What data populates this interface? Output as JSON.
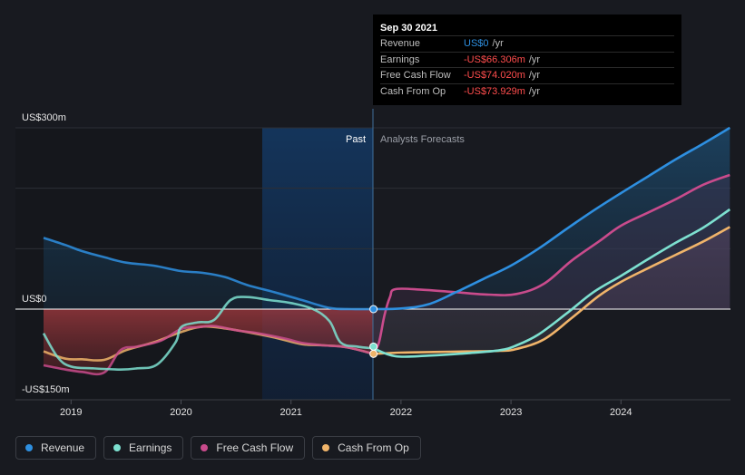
{
  "chart_data": {
    "type": "area",
    "currency_unit": "US$m",
    "y_tick_labels": [
      "US$300m",
      "US$0",
      "-US$150m"
    ],
    "x_tick_labels": [
      "2019",
      "2020",
      "2021",
      "2022",
      "2023",
      "2024"
    ],
    "ylim": [
      -150,
      300
    ],
    "xlim": [
      2018.75,
      2024.99
    ],
    "past_label": "Past",
    "forecast_label": "Analysts Forecasts",
    "highlight_x": 2021.75,
    "grid": true,
    "series": [
      {
        "name": "Revenue",
        "color": "#2e8fe0",
        "points": [
          [
            2018.75,
            118
          ],
          [
            2018.95,
            106
          ],
          [
            2019.1,
            96
          ],
          [
            2019.3,
            86
          ],
          [
            2019.5,
            77
          ],
          [
            2019.75,
            72
          ],
          [
            2020.0,
            63
          ],
          [
            2020.2,
            60
          ],
          [
            2020.4,
            53
          ],
          [
            2020.6,
            40
          ],
          [
            2020.85,
            28
          ],
          [
            2021.1,
            15
          ],
          [
            2021.35,
            2
          ],
          [
            2021.55,
            0
          ],
          [
            2021.75,
            0
          ],
          [
            2022.0,
            1
          ],
          [
            2022.25,
            8
          ],
          [
            2022.5,
            28
          ],
          [
            2022.75,
            50
          ],
          [
            2023.0,
            72
          ],
          [
            2023.25,
            100
          ],
          [
            2023.5,
            132
          ],
          [
            2023.75,
            163
          ],
          [
            2024.0,
            192
          ],
          [
            2024.25,
            220
          ],
          [
            2024.5,
            248
          ],
          [
            2024.75,
            274
          ],
          [
            2024.99,
            300
          ]
        ]
      },
      {
        "name": "Earnings",
        "color": "#7de0d0",
        "points": [
          [
            2018.75,
            -40
          ],
          [
            2018.88,
            -80
          ],
          [
            2019.0,
            -95
          ],
          [
            2019.2,
            -98
          ],
          [
            2019.45,
            -100
          ],
          [
            2019.6,
            -98
          ],
          [
            2019.78,
            -92
          ],
          [
            2019.95,
            -55
          ],
          [
            2020.0,
            -30
          ],
          [
            2020.15,
            -22
          ],
          [
            2020.3,
            -18
          ],
          [
            2020.45,
            15
          ],
          [
            2020.6,
            20
          ],
          [
            2020.8,
            15
          ],
          [
            2021.0,
            10
          ],
          [
            2021.2,
            0
          ],
          [
            2021.35,
            -20
          ],
          [
            2021.45,
            -55
          ],
          [
            2021.6,
            -62
          ],
          [
            2021.75,
            -65
          ],
          [
            2021.95,
            -78
          ],
          [
            2022.25,
            -77
          ],
          [
            2022.6,
            -73
          ],
          [
            2022.9,
            -68
          ],
          [
            2023.05,
            -60
          ],
          [
            2023.25,
            -42
          ],
          [
            2023.5,
            -8
          ],
          [
            2023.75,
            28
          ],
          [
            2024.0,
            55
          ],
          [
            2024.25,
            83
          ],
          [
            2024.5,
            110
          ],
          [
            2024.75,
            135
          ],
          [
            2024.99,
            165
          ]
        ]
      },
      {
        "name": "Free Cash Flow",
        "color": "#c94b8c",
        "points": [
          [
            2018.75,
            -93
          ],
          [
            2018.95,
            -100
          ],
          [
            2019.1,
            -104
          ],
          [
            2019.3,
            -105
          ],
          [
            2019.45,
            -68
          ],
          [
            2019.6,
            -62
          ],
          [
            2019.82,
            -52
          ],
          [
            2020.0,
            -33
          ],
          [
            2020.15,
            -30
          ],
          [
            2020.3,
            -28
          ],
          [
            2020.5,
            -35
          ],
          [
            2020.7,
            -40
          ],
          [
            2020.95,
            -49
          ],
          [
            2021.1,
            -56
          ],
          [
            2021.3,
            -60
          ],
          [
            2021.5,
            -63
          ],
          [
            2021.75,
            -74
          ],
          [
            2021.8,
            -55
          ],
          [
            2021.85,
            -10
          ],
          [
            2021.9,
            20
          ],
          [
            2021.95,
            33
          ],
          [
            2022.2,
            32
          ],
          [
            2022.5,
            28
          ],
          [
            2022.8,
            24
          ],
          [
            2023.05,
            25
          ],
          [
            2023.3,
            42
          ],
          [
            2023.55,
            80
          ],
          [
            2023.8,
            112
          ],
          [
            2024.0,
            138
          ],
          [
            2024.25,
            160
          ],
          [
            2024.5,
            182
          ],
          [
            2024.75,
            206
          ],
          [
            2024.99,
            222
          ]
        ]
      },
      {
        "name": "Cash From Op",
        "color": "#f0b46a",
        "points": [
          [
            2018.75,
            -70
          ],
          [
            2018.95,
            -82
          ],
          [
            2019.1,
            -83
          ],
          [
            2019.3,
            -84
          ],
          [
            2019.5,
            -68
          ],
          [
            2019.75,
            -55
          ],
          [
            2020.0,
            -38
          ],
          [
            2020.2,
            -29
          ],
          [
            2020.4,
            -32
          ],
          [
            2020.6,
            -38
          ],
          [
            2020.85,
            -47
          ],
          [
            2021.1,
            -58
          ],
          [
            2021.3,
            -60
          ],
          [
            2021.5,
            -63
          ],
          [
            2021.75,
            -74
          ],
          [
            2022.0,
            -72
          ],
          [
            2022.3,
            -71
          ],
          [
            2022.6,
            -70
          ],
          [
            2022.9,
            -69
          ],
          [
            2023.05,
            -66
          ],
          [
            2023.3,
            -50
          ],
          [
            2023.55,
            -15
          ],
          [
            2023.8,
            22
          ],
          [
            2024.0,
            45
          ],
          [
            2024.25,
            68
          ],
          [
            2024.5,
            90
          ],
          [
            2024.75,
            112
          ],
          [
            2024.99,
            136
          ]
        ]
      }
    ]
  },
  "tooltip": {
    "date": "Sep 30 2021",
    "rows": [
      {
        "label": "Revenue",
        "value": "US$0",
        "unit": "/yr",
        "color": "#2e8fe0"
      },
      {
        "label": "Earnings",
        "value": "-US$66.306m",
        "unit": "/yr",
        "color": "#ff4d4d"
      },
      {
        "label": "Free Cash Flow",
        "value": "-US$74.020m",
        "unit": "/yr",
        "color": "#ff4d4d"
      },
      {
        "label": "Cash From Op",
        "value": "-US$73.929m",
        "unit": "/yr",
        "color": "#ff4d4d"
      }
    ]
  },
  "legend": [
    {
      "label": "Revenue",
      "color": "#2e8fe0"
    },
    {
      "label": "Earnings",
      "color": "#7de0d0"
    },
    {
      "label": "Free Cash Flow",
      "color": "#c94b8c"
    },
    {
      "label": "Cash From Op",
      "color": "#f0b46a"
    }
  ]
}
